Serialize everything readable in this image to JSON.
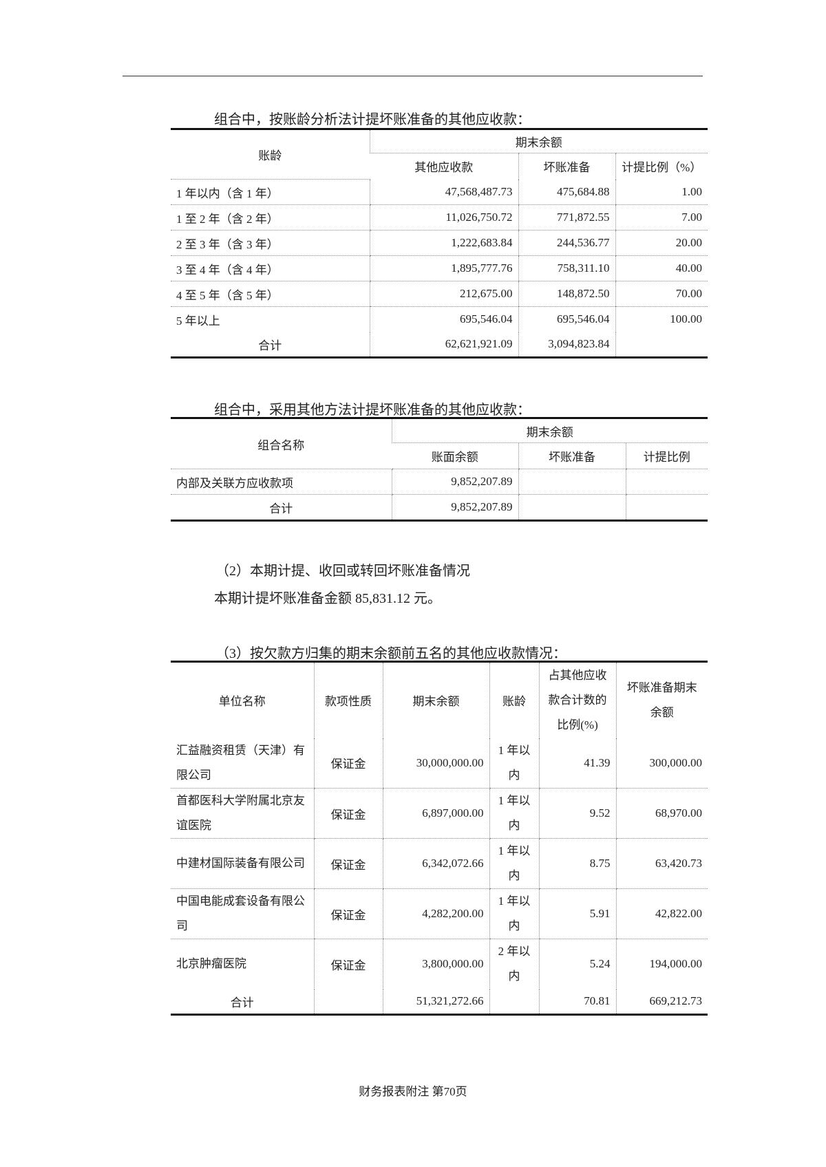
{
  "table1": {
    "caption": "组合中，按账龄分析法计提坏账准备的其他应收款：",
    "headers": {
      "aging": "账龄",
      "group": "期末余额",
      "receivable": "其他应收款",
      "provision": "坏账准备",
      "ratio": "计提比例（%）"
    },
    "rows": [
      {
        "aging": "1 年以内（含 1 年）",
        "receivable": "47,568,487.73",
        "provision": "475,684.88",
        "ratio": "1.00"
      },
      {
        "aging": "1 至 2 年（含 2 年）",
        "receivable": "11,026,750.72",
        "provision": "771,872.55",
        "ratio": "7.00"
      },
      {
        "aging": "2 至 3 年（含 3 年）",
        "receivable": "1,222,683.84",
        "provision": "244,536.77",
        "ratio": "20.00"
      },
      {
        "aging": "3 至 4 年（含 4 年）",
        "receivable": "1,895,777.76",
        "provision": "758,311.10",
        "ratio": "40.00"
      },
      {
        "aging": "4 至 5 年（含 5 年）",
        "receivable": "212,675.00",
        "provision": "148,872.50",
        "ratio": "70.00"
      },
      {
        "aging": "5 年以上",
        "receivable": "695,546.04",
        "provision": "695,546.04",
        "ratio": "100.00"
      }
    ],
    "total": {
      "label": "合计",
      "receivable": "62,621,921.09",
      "provision": "3,094,823.84",
      "ratio": ""
    }
  },
  "table2": {
    "caption": "组合中，采用其他方法计提坏账准备的其他应收款：",
    "headers": {
      "name": "组合名称",
      "group": "期末余额",
      "book": "账面余额",
      "provision": "坏账准备",
      "ratio": "计提比例"
    },
    "rows": [
      {
        "name": "内部及关联方应收款项",
        "book": "9,852,207.89",
        "provision": "",
        "ratio": ""
      }
    ],
    "total": {
      "label": "合计",
      "book": "9,852,207.89",
      "provision": "",
      "ratio": ""
    }
  },
  "section2": {
    "title": "（2）本期计提、收回或转回坏账准备情况",
    "text": "本期计提坏账准备金额 85,831.12 元。"
  },
  "table3": {
    "caption": "（3）按欠款方归集的期末余额前五名的其他应收款情况：",
    "headers": {
      "name": "单位名称",
      "nature": "款项性质",
      "balance": "期末余额",
      "aging": "账龄",
      "share": "占其他应收款合计数的比例(%)",
      "provision": "坏账准备期末余额"
    },
    "rows": [
      {
        "name": "汇益融资租赁（天津）有限公司",
        "nature": "保证金",
        "balance": "30,000,000.00",
        "aging": "1 年以内",
        "share": "41.39",
        "provision": "300,000.00"
      },
      {
        "name": "首都医科大学附属北京友谊医院",
        "nature": "保证金",
        "balance": "6,897,000.00",
        "aging": "1 年以内",
        "share": "9.52",
        "provision": "68,970.00"
      },
      {
        "name": "中建材国际装备有限公司",
        "nature": "保证金",
        "balance": "6,342,072.66",
        "aging": "1 年以内",
        "share": "8.75",
        "provision": "63,420.73"
      },
      {
        "name": "中国电能成套设备有限公司",
        "nature": "保证金",
        "balance": "4,282,200.00",
        "aging": "1 年以内",
        "share": "5.91",
        "provision": "42,822.00"
      },
      {
        "name": "北京肿瘤医院",
        "nature": "保证金",
        "balance": "3,800,000.00",
        "aging": "2 年以内",
        "share": "5.24",
        "provision": "194,000.00"
      }
    ],
    "total": {
      "label": "合计",
      "nature": "",
      "balance": "51,321,272.66",
      "aging": "",
      "share": "70.81",
      "provision": "669,212.73"
    }
  },
  "footer": "财务报表附注 第70页"
}
